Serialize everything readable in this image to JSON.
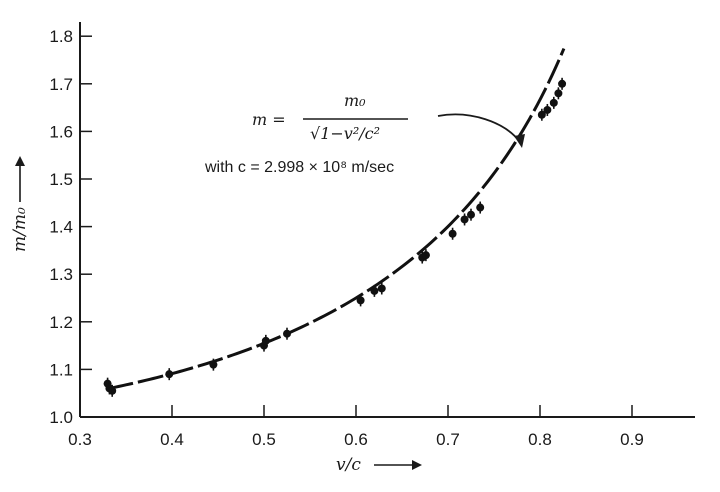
{
  "chart_data": {
    "type": "scatter",
    "title": "",
    "xlabel": "v/c",
    "ylabel": "m/m₀",
    "xlim": [
      0.3,
      0.95
    ],
    "ylim": [
      1.0,
      1.85
    ],
    "grid": false,
    "x_ticks": [
      "0.3",
      "0.4",
      "0.5",
      "0.6",
      "0.7",
      "0.8",
      "0.9"
    ],
    "y_ticks": [
      "1.0",
      "1.1",
      "1.2",
      "1.3",
      "1.4",
      "1.5",
      "1.6",
      "1.7",
      "1.8"
    ],
    "series": [
      {
        "points": [
          {
            "x": 0.33,
            "y": 1.07
          },
          {
            "x": 0.332,
            "y": 1.06
          },
          {
            "x": 0.335,
            "y": 1.055
          },
          {
            "x": 0.397,
            "y": 1.09
          },
          {
            "x": 0.445,
            "y": 1.11
          },
          {
            "x": 0.5,
            "y": 1.15
          },
          {
            "x": 0.502,
            "y": 1.16
          },
          {
            "x": 0.525,
            "y": 1.175
          },
          {
            "x": 0.605,
            "y": 1.245
          },
          {
            "x": 0.62,
            "y": 1.265
          },
          {
            "x": 0.628,
            "y": 1.27
          },
          {
            "x": 0.672,
            "y": 1.335
          },
          {
            "x": 0.676,
            "y": 1.34
          },
          {
            "x": 0.705,
            "y": 1.385
          },
          {
            "x": 0.718,
            "y": 1.415
          },
          {
            "x": 0.725,
            "y": 1.425
          },
          {
            "x": 0.735,
            "y": 1.44
          },
          {
            "x": 0.802,
            "y": 1.635
          },
          {
            "x": 0.808,
            "y": 1.645
          },
          {
            "x": 0.815,
            "y": 1.66
          },
          {
            "x": 0.82,
            "y": 1.68
          },
          {
            "x": 0.824,
            "y": 1.7
          }
        ]
      }
    ],
    "curve": {
      "formula_lhs": "m =",
      "formula_numerator": "m₀",
      "formula_denominator": "√1−v²/c²",
      "formula_note": "with c = 2.998 × 10⁸ m/sec",
      "x_range": [
        0.33,
        0.826
      ]
    }
  }
}
